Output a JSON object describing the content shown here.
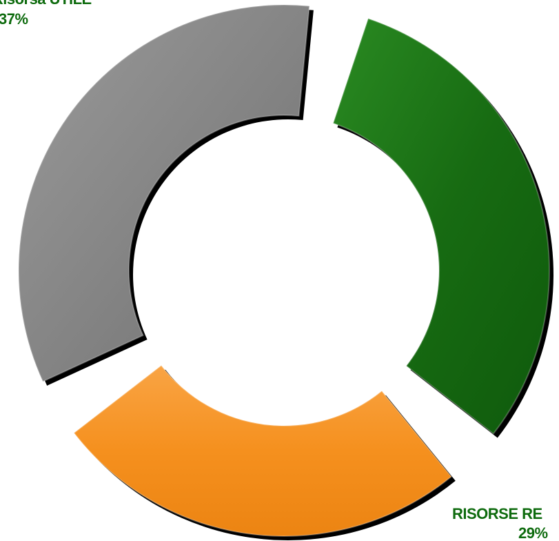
{
  "chart_data": {
    "type": "pie",
    "style": "exploded donut",
    "slices": [
      {
        "key": "green",
        "label": "",
        "value": 34,
        "percent_label": "",
        "color": "#176B12"
      },
      {
        "key": "orange",
        "label": "RISORSE RE",
        "value": 29,
        "percent_label": "29%",
        "color": "#F5901E"
      },
      {
        "key": "gray",
        "label": "...Risorsa UTILE",
        "value": 37,
        "percent_label": "37%",
        "color": "#858585"
      }
    ],
    "label_color": "#0E6B0E",
    "legend": "none"
  }
}
